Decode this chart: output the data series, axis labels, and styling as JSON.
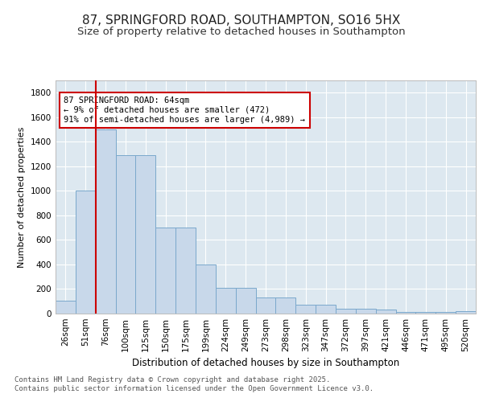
{
  "title": "87, SPRINGFORD ROAD, SOUTHAMPTON, SO16 5HX",
  "subtitle": "Size of property relative to detached houses in Southampton",
  "xlabel": "Distribution of detached houses by size in Southampton",
  "ylabel": "Number of detached properties",
  "categories": [
    "26sqm",
    "51sqm",
    "76sqm",
    "100sqm",
    "125sqm",
    "150sqm",
    "175sqm",
    "199sqm",
    "224sqm",
    "249sqm",
    "273sqm",
    "298sqm",
    "323sqm",
    "347sqm",
    "372sqm",
    "397sqm",
    "421sqm",
    "446sqm",
    "471sqm",
    "495sqm",
    "520sqm"
  ],
  "values": [
    105,
    1000,
    1500,
    1290,
    1290,
    700,
    700,
    400,
    210,
    210,
    130,
    130,
    70,
    70,
    40,
    40,
    30,
    15,
    15,
    10,
    20
  ],
  "bar_color": "#c8d8ea",
  "bar_edge_color": "#7aa8cc",
  "vline_x_index": 1,
  "vline_color": "#cc0000",
  "annotation_text": "87 SPRINGFORD ROAD: 64sqm\n← 9% of detached houses are smaller (472)\n91% of semi-detached houses are larger (4,989) →",
  "annotation_box_facecolor": "#ffffff",
  "annotation_box_edgecolor": "#cc0000",
  "ylim": [
    0,
    1900
  ],
  "yticks": [
    0,
    200,
    400,
    600,
    800,
    1000,
    1200,
    1400,
    1600,
    1800
  ],
  "bg_color": "#ffffff",
  "plot_bg_color": "#dde8f0",
  "grid_color": "#ffffff",
  "footer": "Contains HM Land Registry data © Crown copyright and database right 2025.\nContains public sector information licensed under the Open Government Licence v3.0.",
  "title_fontsize": 11,
  "subtitle_fontsize": 9.5,
  "xlabel_fontsize": 8.5,
  "ylabel_fontsize": 8,
  "tick_fontsize": 7.5,
  "footer_fontsize": 6.5,
  "annotation_fontsize": 7.5
}
